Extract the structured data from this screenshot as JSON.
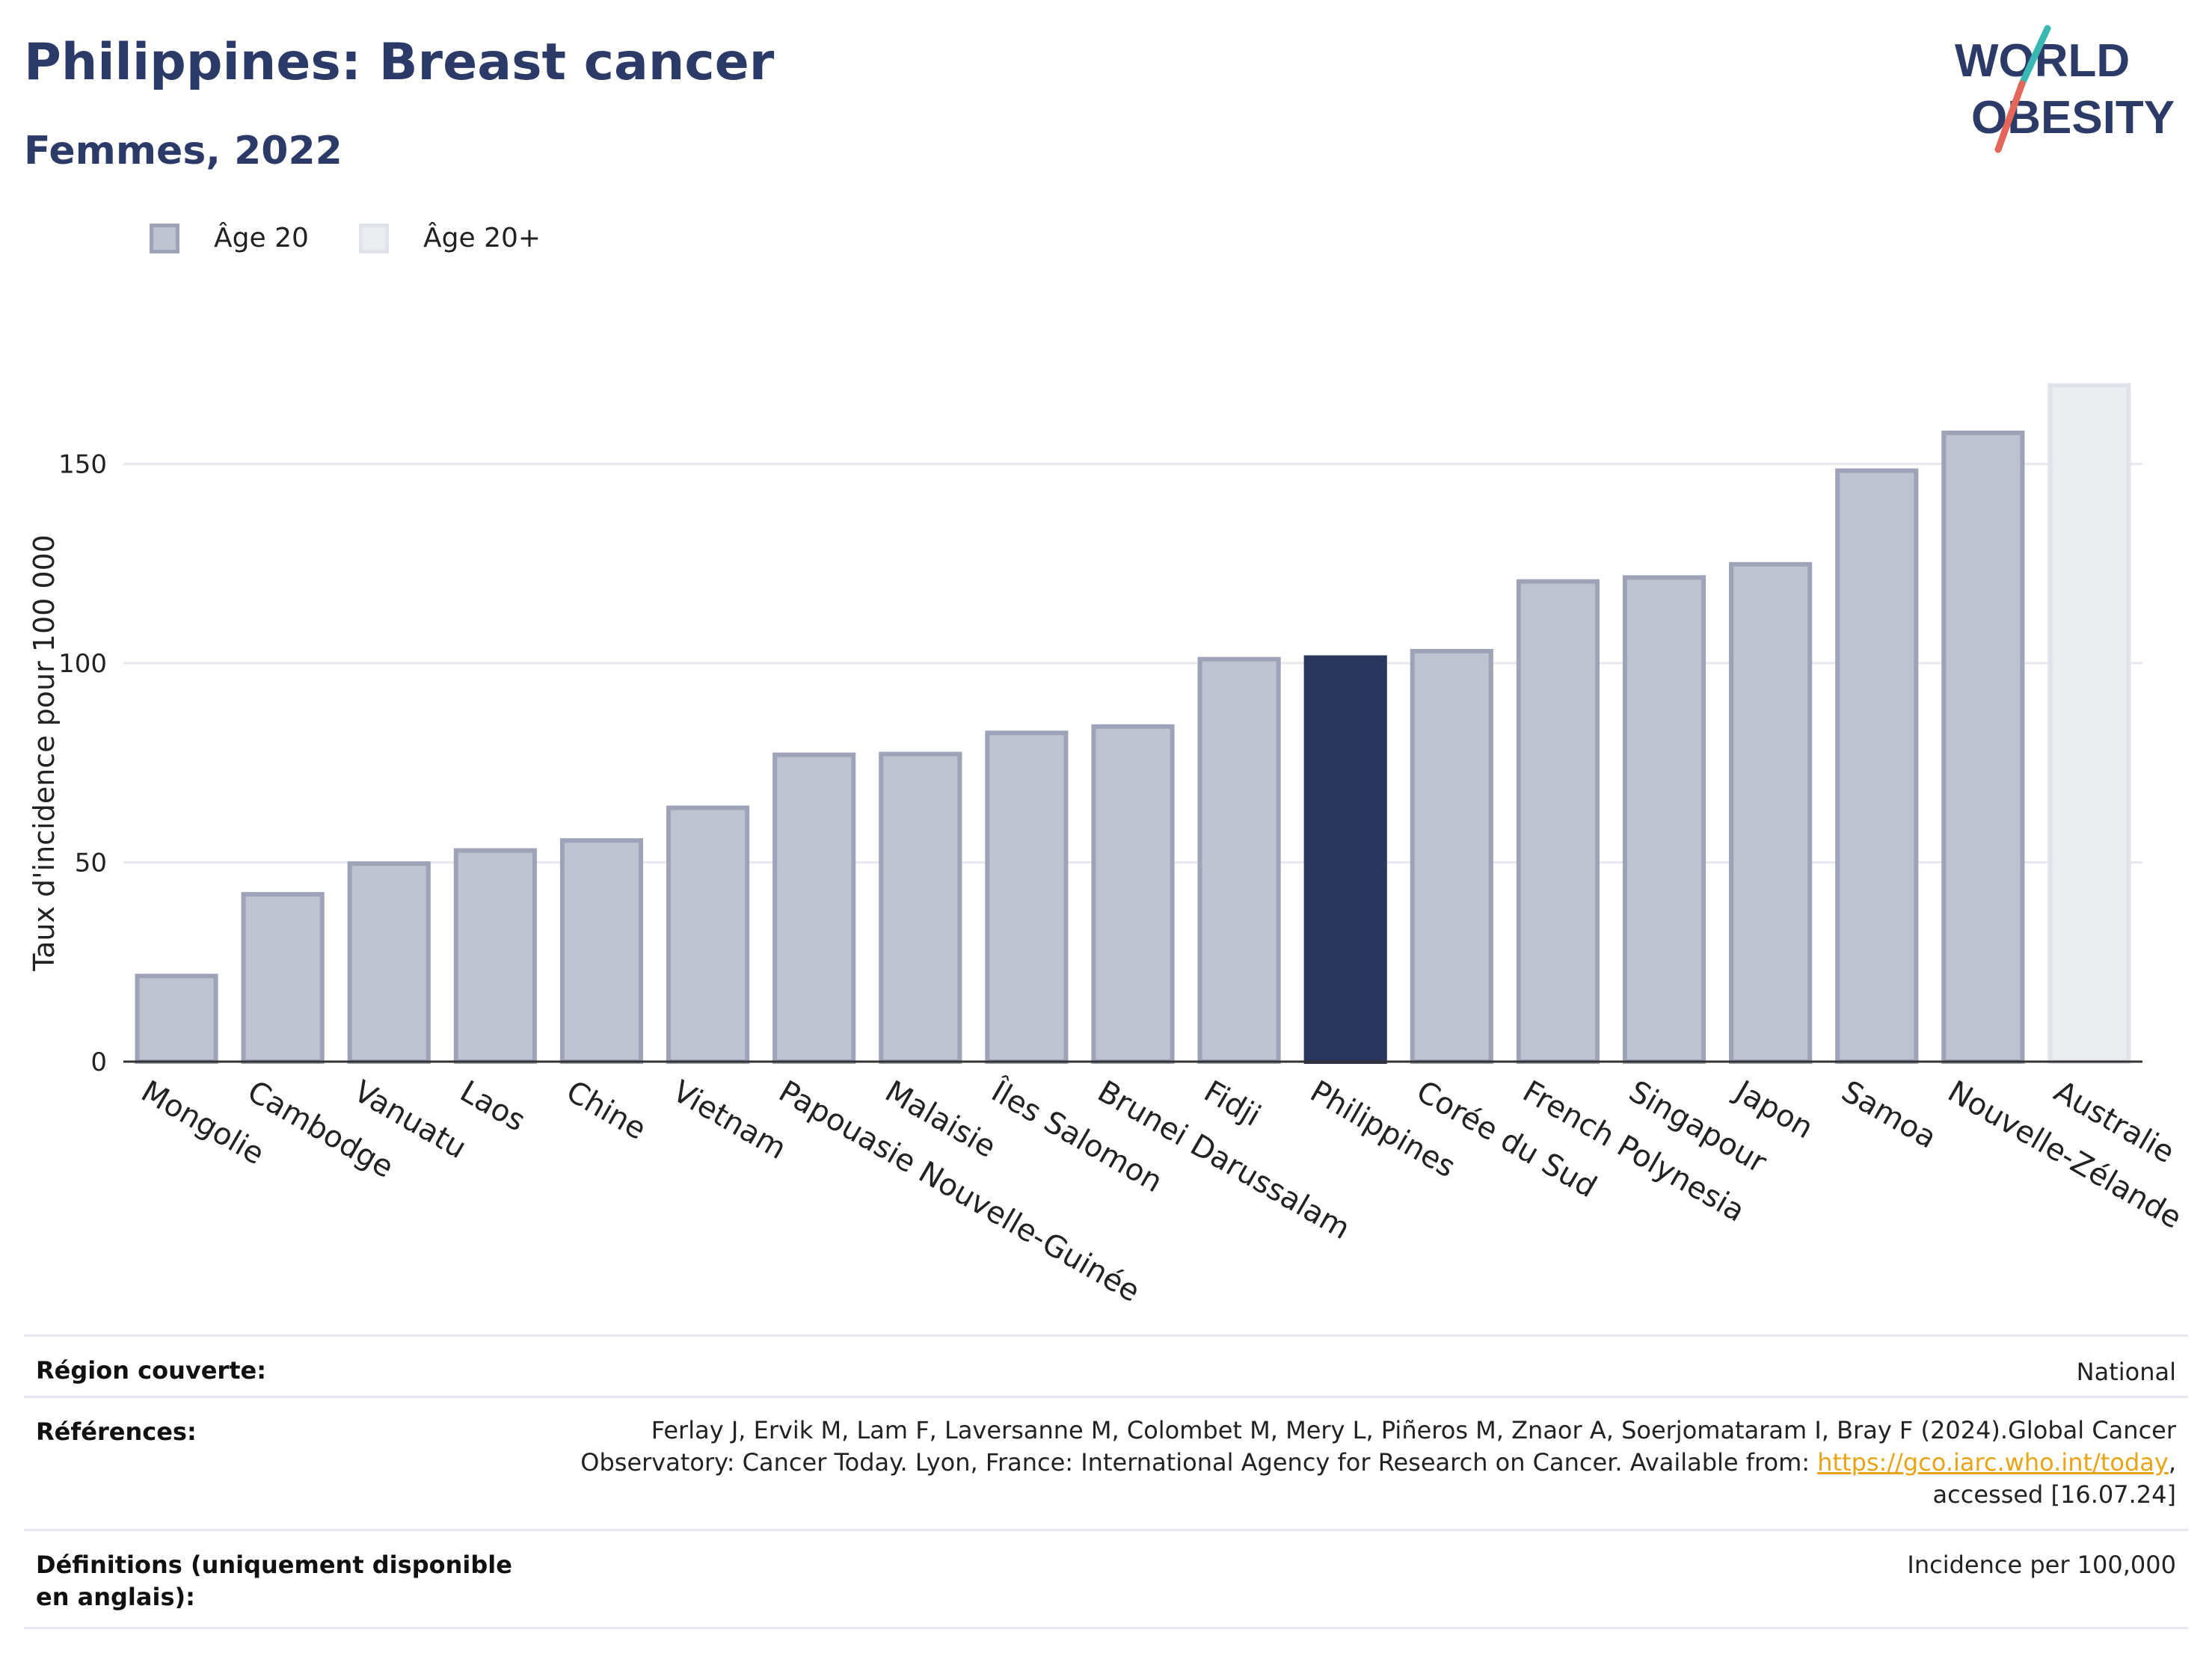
{
  "header": {
    "title": "Philippines: Breast cancer",
    "subtitle": "Femmes, 2022",
    "logo_line1": "WORLD",
    "logo_line2": "OBESITY"
  },
  "legend": {
    "items": [
      {
        "label": "Âge 20",
        "color": "#bfc2cf",
        "border": "#9ea3b8"
      },
      {
        "label": "Âge 20+",
        "color": "#ecedf1",
        "border": "#e1e3ea"
      }
    ]
  },
  "chart_data": {
    "type": "bar",
    "ylabel": "Taux d'incidence pour 100 000",
    "xlabel": "",
    "ylim": [
      0,
      175
    ],
    "yticks": [
      0,
      50,
      100,
      150
    ],
    "grid": true,
    "legend_position": "top-left",
    "categories": [
      "Mongolie",
      "Cambodge",
      "Vanuatu",
      "Laos",
      "Chine",
      "Vietnam",
      "Papouasie Nouvelle-Guinée",
      "Malaisie",
      "Îles Salomon",
      "Brunei Darussalam",
      "Fidji",
      "Philippines",
      "Corée du Sud",
      "French Polynesia",
      "Singapour",
      "Japon",
      "Samoa",
      "Nouvelle-Zélande",
      "Australie"
    ],
    "values": [
      21.5,
      42,
      49.7,
      53,
      55.5,
      63.7,
      77,
      77.2,
      82.5,
      84.1,
      101,
      101.4,
      103,
      120.5,
      121.5,
      124.8,
      148.3,
      157.8,
      169.7
    ],
    "series_of_bar": [
      "Âge 20",
      "Âge 20",
      "Âge 20",
      "Âge 20",
      "Âge 20",
      "Âge 20",
      "Âge 20",
      "Âge 20",
      "Âge 20",
      "Âge 20",
      "Âge 20",
      "Âge 20",
      "Âge 20",
      "Âge 20",
      "Âge 20",
      "Âge 20",
      "Âge 20",
      "Âge 20",
      "Âge 20+"
    ],
    "highlight": "Philippines",
    "colors": {
      "bar": "#bfc2cf",
      "bar_border": "#9ea3b8",
      "highlight": "#2a365e",
      "age20plus": "#ecedf1",
      "age20plus_border": "#e1e3ea",
      "grid": "#e8e9ee",
      "axis": "#333333"
    }
  },
  "footer": {
    "region_label": "Région couverte:",
    "region_value": "National",
    "references_label": "Références:",
    "references_line1": "Ferlay J, Ervik M, Lam F, Laversanne M, Colombet M, Mery L, Piñeros M, Znaor A, Soerjomataram I, Bray F (2024).Global Cancer",
    "references_line2_pre": "Observatory: Cancer Today. Lyon, France: International Agency for Research on Cancer. Available from: ",
    "references_link": "https://gco.iarc.who.int/today",
    "references_line2_post": ",",
    "references_line3": "accessed [16.07.24]",
    "definitions_label": "Définitions (uniquement disponible en anglais):",
    "definitions_value": "Incidence per 100,000"
  }
}
